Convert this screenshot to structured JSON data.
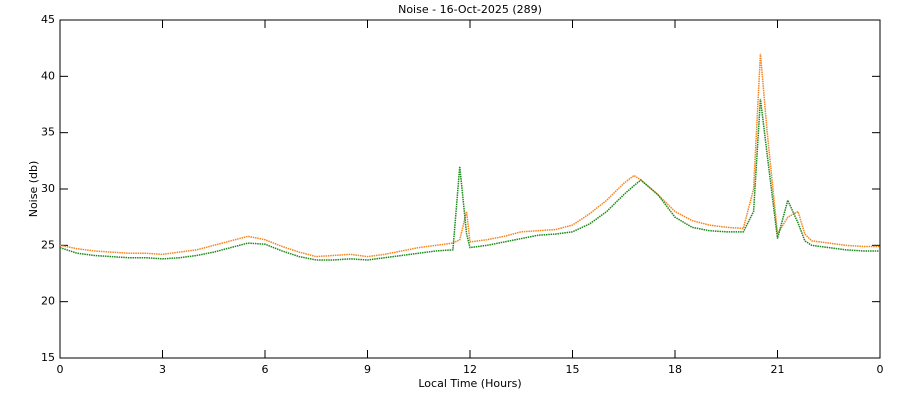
{
  "chart_data": {
    "type": "line",
    "title": "Noise - 16-Oct-2025 (289)",
    "x_label": "Local Time (Hours)",
    "y_label": "Noise (db)",
    "x": [
      0,
      0.5,
      1,
      1.5,
      2,
      2.5,
      3,
      3.5,
      4,
      4.5,
      5,
      5.5,
      6,
      6.5,
      7,
      7.5,
      8,
      8.5,
      9,
      9.5,
      10,
      10.5,
      11,
      11.5,
      11.7,
      11.9,
      12,
      12.5,
      13,
      13.5,
      14,
      14.5,
      15,
      15.5,
      16,
      16.5,
      16.8,
      17,
      17.5,
      18,
      18.5,
      19,
      19.5,
      20,
      20.3,
      20.5,
      20.7,
      21,
      21.3,
      21.6,
      21.8,
      22,
      22.5,
      23,
      23.5,
      24
    ],
    "series": [
      {
        "color": "#f5841f",
        "values": [
          25.0,
          24.7,
          24.5,
          24.4,
          24.3,
          24.3,
          24.2,
          24.4,
          24.6,
          25.0,
          25.4,
          25.8,
          25.5,
          24.9,
          24.4,
          24.0,
          24.1,
          24.2,
          24.0,
          24.2,
          24.5,
          24.8,
          25.0,
          25.2,
          25.5,
          28.0,
          25.3,
          25.5,
          25.8,
          26.2,
          26.3,
          26.4,
          26.8,
          27.8,
          29.0,
          30.5,
          31.2,
          30.8,
          29.5,
          28.0,
          27.2,
          26.8,
          26.6,
          26.5,
          30.0,
          42.0,
          35.0,
          26.0,
          27.5,
          28.0,
          26.0,
          25.4,
          25.2,
          25.0,
          24.9,
          24.9
        ]
      },
      {
        "color": "#1a8a1a",
        "values": [
          24.8,
          24.3,
          24.1,
          24.0,
          23.9,
          23.9,
          23.8,
          23.9,
          24.1,
          24.4,
          24.8,
          25.2,
          25.1,
          24.5,
          24.0,
          23.7,
          23.7,
          23.8,
          23.7,
          23.9,
          24.1,
          24.3,
          24.5,
          24.6,
          32.0,
          26.0,
          24.8,
          25.0,
          25.3,
          25.6,
          25.9,
          26.0,
          26.2,
          26.9,
          28.0,
          29.5,
          30.3,
          30.8,
          29.5,
          27.5,
          26.6,
          26.3,
          26.2,
          26.2,
          28.0,
          38.0,
          33.0,
          25.6,
          29.0,
          27.0,
          25.4,
          25.0,
          24.8,
          24.6,
          24.5,
          24.5
        ]
      }
    ],
    "xlim": [
      0,
      24
    ],
    "xticks": [
      0,
      3,
      6,
      9,
      12,
      15,
      18,
      21,
      {
        "value": 24,
        "label": "0"
      }
    ],
    "ylim": [
      15,
      45
    ],
    "yticks": [
      15,
      20,
      25,
      30,
      35,
      40,
      45
    ]
  }
}
